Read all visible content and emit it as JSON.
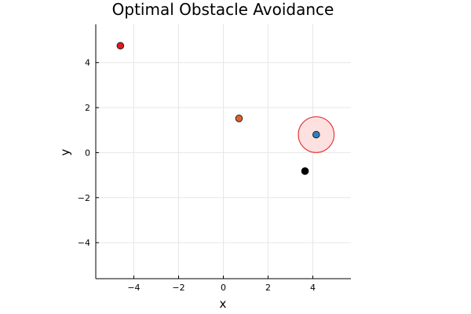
{
  "chart_data": {
    "type": "scatter",
    "title": "Optimal Obstacle Avoidance",
    "xlabel": "x",
    "ylabel": "y",
    "xlim": [
      -5.7,
      5.7
    ],
    "ylim": [
      -5.6,
      5.7
    ],
    "xticks": [
      -4,
      -2,
      0,
      2,
      4
    ],
    "yticks": [
      -4,
      -2,
      0,
      2,
      4
    ],
    "xtick_labels": [
      "−4",
      "−2",
      "0",
      "2",
      "4"
    ],
    "ytick_labels": [
      "−4",
      "−2",
      "0",
      "2",
      "4"
    ],
    "grid": true,
    "aspect": "equal",
    "points": [
      {
        "x": -4.6,
        "y": 4.75,
        "color": "#e31a1c",
        "edge": "#222222"
      },
      {
        "x": 0.7,
        "y": 1.52,
        "color": "#e2612a",
        "edge": "#222222"
      },
      {
        "x": 4.15,
        "y": 0.8,
        "color": "#2f7fc1",
        "edge": "#222222"
      },
      {
        "x": 3.65,
        "y": -0.82,
        "color": "#000000",
        "edge": "#000000"
      }
    ],
    "obstacles": [
      {
        "cx": 4.15,
        "cy": 0.8,
        "r": 0.8,
        "fill": "#fde0e0",
        "stroke": "#e31a1c"
      }
    ]
  }
}
